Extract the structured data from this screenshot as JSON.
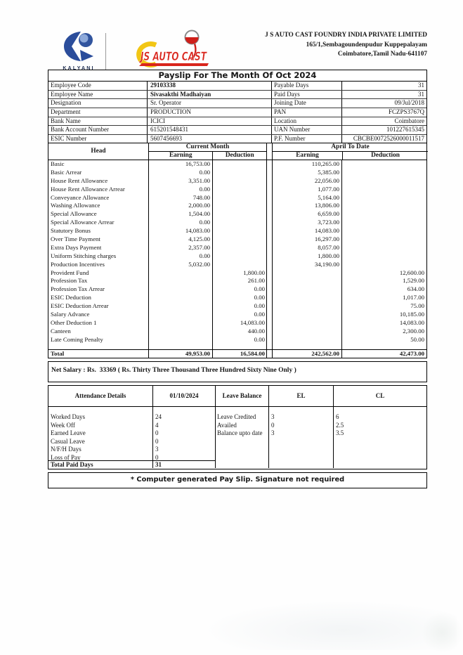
{
  "brand": {
    "kalyani_label": "KALYANI",
    "jsautocast_text": "JS AUTO CAST",
    "colors": {
      "kalyani_blue": "#2b4d9b",
      "kalyani_sphere_light": "#9db8e4",
      "js_red": "#d9251c",
      "js_yellow": "#f2c615",
      "ladle_ring_gray": "#8a8a8a"
    }
  },
  "company": {
    "name": "J S AUTO CAST FOUNDRY INDIA PRIVATE LIMITED",
    "address1": "165/1,Sembagoundenpudur Kuppepalayam",
    "address2": "Coimbatore,Tamil Nadu-641107"
  },
  "title": "Payslip For The Month Of Oct 2024",
  "employee_info": {
    "rows": [
      {
        "label_left": "Employee Code",
        "value_left": "29103338",
        "bold_left": true,
        "label_right": "Payable Days",
        "value_right": "31"
      },
      {
        "label_left": "Employee Name",
        "value_left": "Sivasakthi Madhaiyan",
        "bold_left": true,
        "label_right": "Paid Days",
        "value_right": "31"
      },
      {
        "label_left": "Designation",
        "value_left": "Sr. Operator",
        "bold_left": false,
        "label_right": "Joining Date",
        "value_right": "09/Jul/2018"
      },
      {
        "label_left": "Department",
        "value_left": "PRODUCTION",
        "bold_left": false,
        "label_right": "PAN",
        "value_right": "FCZPS3767Q"
      },
      {
        "label_left": "Bank Name",
        "value_left": "ICICI",
        "bold_left": false,
        "label_right": "Location",
        "value_right": "Coimbatore"
      },
      {
        "label_left": "Bank Account Number",
        "value_left": "615201548431",
        "bold_left": false,
        "label_right": "UAN Number",
        "value_right": "101227615345"
      },
      {
        "label_left": "ESIC Number",
        "value_left": "5607456693",
        "bold_left": false,
        "label_right": "P.F. Number",
        "value_right": "CBCBE0072526000011517"
      }
    ]
  },
  "salary_table": {
    "head_col": "Head",
    "group_current": "Current Month",
    "group_april": "April To Date",
    "sub_earning": "Earning",
    "sub_deduction": "Deduction",
    "rows": [
      {
        "head": "Basic",
        "cm_earn": "16,753.00",
        "cm_ded": "",
        "atd_earn": "110,265.00",
        "atd_ded": ""
      },
      {
        "head": "Basic Arrear",
        "cm_earn": "0.00",
        "cm_ded": "",
        "atd_earn": "5,385.00",
        "atd_ded": ""
      },
      {
        "head": "House Rent Allowance",
        "cm_earn": "3,351.00",
        "cm_ded": "",
        "atd_earn": "22,056.00",
        "atd_ded": ""
      },
      {
        "head": "House Rent Allowance Arrear",
        "cm_earn": "0.00",
        "cm_ded": "",
        "atd_earn": "1,077.00",
        "atd_ded": ""
      },
      {
        "head": "Conveyance Allowance",
        "cm_earn": "748.00",
        "cm_ded": "",
        "atd_earn": "5,164.00",
        "atd_ded": ""
      },
      {
        "head": "Washing Allowance",
        "cm_earn": "2,000.00",
        "cm_ded": "",
        "atd_earn": "13,806.00",
        "atd_ded": ""
      },
      {
        "head": "Special Allowance",
        "cm_earn": "1,504.00",
        "cm_ded": "",
        "atd_earn": "6,659.00",
        "atd_ded": ""
      },
      {
        "head": "Special Allowance Arrear",
        "cm_earn": "0.00",
        "cm_ded": "",
        "atd_earn": "3,723.00",
        "atd_ded": ""
      },
      {
        "head": "Statutory Bonus",
        "cm_earn": "14,083.00",
        "cm_ded": "",
        "atd_earn": "14,083.00",
        "atd_ded": ""
      },
      {
        "head": "Over Time Payment",
        "cm_earn": "4,125.00",
        "cm_ded": "",
        "atd_earn": "16,297.00",
        "atd_ded": ""
      },
      {
        "head": "Extra Days Payment",
        "cm_earn": "2,357.00",
        "cm_ded": "",
        "atd_earn": "8,057.00",
        "atd_ded": ""
      },
      {
        "head": "Uniform Stitching charges",
        "cm_earn": "0.00",
        "cm_ded": "",
        "atd_earn": "1,800.00",
        "atd_ded": ""
      },
      {
        "head": "Production Incentives",
        "cm_earn": "5,032.00",
        "cm_ded": "",
        "atd_earn": "34,190.00",
        "atd_ded": ""
      },
      {
        "head": "Provident Fund",
        "cm_earn": "",
        "cm_ded": "1,800.00",
        "atd_earn": "",
        "atd_ded": "12,600.00"
      },
      {
        "head": "Profession Tax",
        "cm_earn": "",
        "cm_ded": "261.00",
        "atd_earn": "",
        "atd_ded": "1,529.00"
      },
      {
        "head": "Profession Tax Arrear",
        "cm_earn": "",
        "cm_ded": "0.00",
        "atd_earn": "",
        "atd_ded": "634.00"
      },
      {
        "head": "ESIC Deduction",
        "cm_earn": "",
        "cm_ded": "0.00",
        "atd_earn": "",
        "atd_ded": "1,017.00"
      },
      {
        "head": "ESIC Deduction Arrear",
        "cm_earn": "",
        "cm_ded": "0.00",
        "atd_earn": "",
        "atd_ded": "75.00"
      },
      {
        "head": "Salary Advance",
        "cm_earn": "",
        "cm_ded": "0.00",
        "atd_earn": "",
        "atd_ded": "10,185.00"
      },
      {
        "head": "Other Deduction 1",
        "cm_earn": "",
        "cm_ded": "14,083.00",
        "atd_earn": "",
        "atd_ded": "14,083.00"
      },
      {
        "head": "Canteen",
        "cm_earn": "",
        "cm_ded": "440.00",
        "atd_earn": "",
        "atd_ded": "2,300.00"
      },
      {
        "head": "Late Coming Penalty",
        "cm_earn": "",
        "cm_ded": "0.00",
        "atd_earn": "",
        "atd_ded": "50.00"
      }
    ],
    "total": {
      "label": "Total",
      "cm_earn": "49,953.00",
      "cm_ded": "16,584.00",
      "atd_earn": "242,562.00",
      "atd_ded": "42,473.00"
    }
  },
  "net_salary_text": "Net Salary : Rs.  33369 ( Rs. Thirty Three Thousand Three Hundred Sixty Nine Only )",
  "attendance": {
    "headers": [
      "Attendance Details",
      "01/10/2024",
      "Leave Balance",
      "EL",
      "CL"
    ],
    "day_rows": [
      {
        "label": "Worked Days",
        "value": "24"
      },
      {
        "label": "Week Off",
        "value": "4"
      },
      {
        "label": "Earned Leave",
        "value": "0"
      },
      {
        "label": "Casual Leave",
        "value": "0"
      },
      {
        "label": "N/F/H Days",
        "value": "3"
      },
      {
        "label": "Loss of Pay",
        "value": "0"
      }
    ],
    "total_row": {
      "label": "Total Paid Days",
      "value": "31"
    },
    "leave_rows": [
      {
        "label": "Leave Credited",
        "el": "3",
        "cl": "6"
      },
      {
        "label": "Availed",
        "el": "0",
        "cl": "2.5"
      },
      {
        "label": "Balance upto date",
        "el": "3",
        "cl": "3.5"
      }
    ]
  },
  "footer_note": "* Computer generated Pay Slip. Signature not required"
}
